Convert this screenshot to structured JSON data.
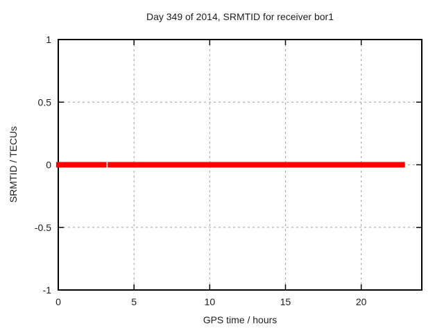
{
  "chart_data": {
    "type": "line",
    "title": "Day 349 of 2014, SRMTID for receiver bor1",
    "xlabel": "GPS time / hours",
    "ylabel": "SRMTID / TECUs",
    "xlim": [
      0,
      24
    ],
    "ylim": [
      -1,
      1
    ],
    "xticks": [
      0,
      5,
      10,
      15,
      20
    ],
    "xtick_labels": [
      "0",
      "5",
      "10",
      "15",
      "20"
    ],
    "yticks": [
      1,
      0.5,
      0,
      -0.5,
      -1
    ],
    "ytick_labels": [
      "1",
      "0.5",
      "0",
      "-0.5",
      "-1"
    ],
    "grid": "dashed, gray, at all interior ticks",
    "legend": "none",
    "series": [
      {
        "name": "SRMTID",
        "color": "#ff0000",
        "style": "thick horizontal band of dense points at y = 0",
        "y": 0,
        "segments": [
          {
            "t_start": 0,
            "t_end": 3.05
          },
          {
            "t_start": 3.4,
            "t_end": 22.75
          }
        ]
      }
    ],
    "colors": {
      "line": "#ff0000",
      "grid": "#a0a0a0",
      "border": "#000000",
      "text": "#1c1c1c",
      "background": "#ffffff"
    }
  }
}
